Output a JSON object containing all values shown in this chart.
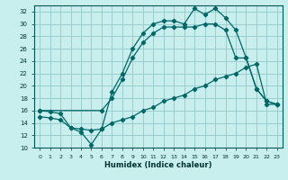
{
  "xlabel": "Humidex (Indice chaleur)",
  "bg_color": "#c8eeee",
  "grid_color": "#99cccc",
  "line_color": "#006666",
  "xlim": [
    -0.5,
    23.5
  ],
  "ylim": [
    10,
    33
  ],
  "xticks": [
    0,
    1,
    2,
    3,
    4,
    5,
    6,
    7,
    8,
    9,
    10,
    11,
    12,
    13,
    14,
    15,
    16,
    17,
    18,
    19,
    20,
    21,
    22,
    23
  ],
  "yticks": [
    10,
    12,
    14,
    16,
    18,
    20,
    22,
    24,
    26,
    28,
    30,
    32
  ],
  "curve_a_x": [
    0,
    1,
    2,
    3,
    4,
    5,
    6,
    7,
    8,
    9,
    10,
    11,
    12,
    13,
    14,
    15,
    16,
    17,
    18,
    19,
    20,
    21,
    22,
    23
  ],
  "curve_a_y": [
    16,
    15.8,
    15.5,
    13.2,
    12.5,
    10.5,
    13,
    19,
    22,
    26,
    28.5,
    30,
    30.5,
    30.5,
    30,
    32.5,
    31.5,
    32.5,
    31,
    29,
    24.5,
    19.5,
    17.5,
    17
  ],
  "curve_b_x": [
    0,
    6,
    7,
    8,
    9,
    10,
    11,
    12,
    13,
    14,
    15,
    16,
    17,
    18,
    19,
    20,
    21,
    22,
    23
  ],
  "curve_b_y": [
    16,
    16,
    18,
    21,
    24.5,
    27,
    28.5,
    29.5,
    29.5,
    29.5,
    29.5,
    30,
    30,
    29,
    24.5,
    24.5,
    19.5,
    17.5,
    17
  ],
  "curve_c_x": [
    0,
    1,
    2,
    3,
    4,
    5,
    6,
    7,
    8,
    9,
    10,
    11,
    12,
    13,
    14,
    15,
    16,
    17,
    18,
    19,
    20,
    21,
    22,
    23
  ],
  "curve_c_y": [
    15,
    14.8,
    14.5,
    13.2,
    13,
    12.8,
    13,
    14,
    14.5,
    15,
    16,
    16.5,
    17.5,
    18,
    18.5,
    19.5,
    20,
    21,
    21.5,
    22,
    23,
    23.5,
    17,
    17
  ]
}
